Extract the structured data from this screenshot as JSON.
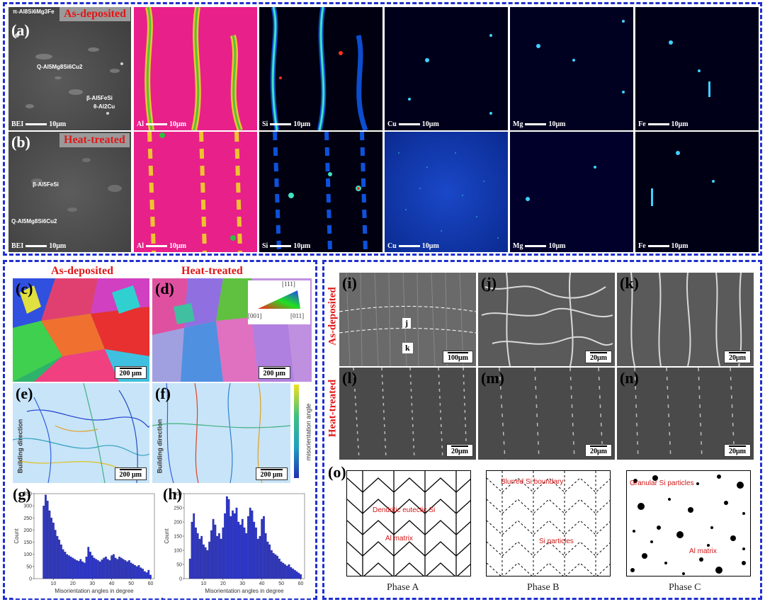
{
  "top_section": {
    "row_a": {
      "label": "(a)",
      "condition": "As-deposited",
      "annotations": [
        "π-Al8Si6Mg3Fe",
        "Q-Al5Mg8Si6Cu2",
        "β-Al5FeSi",
        "θ-Al2Cu"
      ],
      "maps": [
        {
          "element": "BEI",
          "scale": "10μm"
        },
        {
          "element": "Al",
          "scale": "10μm"
        },
        {
          "element": "Si",
          "scale": "10μm"
        },
        {
          "element": "Cu",
          "scale": "10μm"
        },
        {
          "element": "Mg",
          "scale": "10μm"
        },
        {
          "element": "Fe",
          "scale": "10μm"
        }
      ]
    },
    "row_b": {
      "label": "(b)",
      "condition": "Heat-treated",
      "annotations": [
        "β-Al5FeSi",
        "Q-Al5Mg8Si6Cu2"
      ],
      "maps": [
        {
          "element": "BEI",
          "scale": "10μm"
        },
        {
          "element": "Al",
          "scale": "10μm"
        },
        {
          "element": "Si",
          "scale": "10μm"
        },
        {
          "element": "Cu",
          "scale": "10μm"
        },
        {
          "element": "Mg",
          "scale": "10μm"
        },
        {
          "element": "Fe",
          "scale": "10μm"
        }
      ]
    }
  },
  "ebsd_section": {
    "title_left": "As-deposited",
    "title_right": "Heat-treated",
    "c": {
      "label": "(c)",
      "scale": "200 μm"
    },
    "d": {
      "label": "(d)",
      "scale": "200 μm"
    },
    "ipf_legend": {
      "top": "[111]",
      "left": "[001]",
      "right": "[011]"
    },
    "e": {
      "label": "(e)",
      "scale": "200 μm",
      "direction": "Building direction"
    },
    "f": {
      "label": "(f)",
      "scale": "200 μm",
      "direction": "Building direction"
    },
    "colorbar_label": "misorientation angle",
    "g": {
      "label": "(g)"
    },
    "h": {
      "label": "(h)"
    }
  },
  "chart_data": [
    {
      "type": "bar",
      "panel": "(g)",
      "xlabel": "Misorientation angles in degree",
      "ylabel": "Count",
      "xlim": [
        0,
        62
      ],
      "ylim": [
        0,
        350
      ],
      "xticks": [
        10,
        20,
        30,
        40,
        50,
        60
      ],
      "yticks": [
        0,
        50,
        100,
        150,
        200,
        250,
        300,
        350
      ],
      "x": [
        5,
        6,
        7,
        8,
        9,
        10,
        11,
        12,
        13,
        14,
        15,
        16,
        17,
        18,
        19,
        20,
        21,
        22,
        23,
        24,
        25,
        26,
        27,
        28,
        29,
        30,
        31,
        32,
        33,
        34,
        35,
        36,
        37,
        38,
        39,
        40,
        41,
        42,
        43,
        44,
        45,
        46,
        47,
        48,
        49,
        50,
        51,
        52,
        53,
        54,
        55,
        56,
        57,
        58,
        59,
        60
      ],
      "values": [
        300,
        345,
        320,
        280,
        250,
        230,
        200,
        175,
        160,
        140,
        120,
        110,
        100,
        95,
        90,
        85,
        80,
        75,
        72,
        80,
        70,
        65,
        90,
        130,
        110,
        95,
        85,
        80,
        75,
        70,
        78,
        85,
        90,
        80,
        75,
        95,
        100,
        85,
        80,
        90,
        85,
        80,
        75,
        70,
        75,
        65,
        60,
        55,
        50,
        55,
        45,
        40,
        30,
        25,
        35,
        15
      ]
    },
    {
      "type": "bar",
      "panel": "(h)",
      "xlabel": "Misorientation angles in degree",
      "ylabel": "Count",
      "xlim": [
        0,
        62
      ],
      "ylim": [
        0,
        300
      ],
      "xticks": [
        10,
        20,
        30,
        40,
        50,
        60
      ],
      "yticks": [
        0,
        50,
        100,
        150,
        200,
        250,
        300
      ],
      "x": [
        3,
        4,
        5,
        6,
        7,
        8,
        9,
        10,
        11,
        12,
        13,
        14,
        15,
        16,
        17,
        18,
        19,
        20,
        21,
        22,
        23,
        24,
        25,
        26,
        27,
        28,
        29,
        30,
        31,
        32,
        33,
        34,
        35,
        36,
        37,
        38,
        39,
        40,
        41,
        42,
        43,
        44,
        45,
        46,
        47,
        48,
        49,
        50,
        51,
        52,
        53,
        54,
        55,
        56,
        57,
        58,
        59,
        60
      ],
      "values": [
        70,
        200,
        230,
        180,
        160,
        140,
        150,
        120,
        110,
        100,
        130,
        170,
        210,
        190,
        150,
        160,
        140,
        180,
        230,
        290,
        280,
        220,
        240,
        230,
        250,
        200,
        190,
        210,
        180,
        160,
        220,
        250,
        240,
        200,
        180,
        140,
        150,
        210,
        220,
        160,
        130,
        120,
        100,
        90,
        85,
        80,
        70,
        60,
        55,
        50,
        45,
        50,
        40,
        35,
        30,
        25,
        20,
        15
      ]
    }
  ],
  "sem_section": {
    "side_top": "As-deposited",
    "side_bottom": "Heat-treated",
    "i": {
      "label": "(i)",
      "scale": "100μm",
      "markers": [
        "j",
        "k"
      ]
    },
    "j": {
      "label": "(j)",
      "scale": "20μm"
    },
    "k": {
      "label": "(k)",
      "scale": "20μm"
    },
    "l": {
      "label": "(l)",
      "scale": "20μm"
    },
    "m": {
      "label": "(m)",
      "scale": "20μm"
    },
    "n": {
      "label": "(n)",
      "scale": "20μm"
    }
  },
  "schematic": {
    "label": "(o)",
    "phase_a": {
      "caption": "Phase A",
      "ann1": "Dendritic eutectic Si",
      "ann2": "Al matrix"
    },
    "phase_b": {
      "caption": "Phase B",
      "ann1": "Blurred Si boundary",
      "ann2": "Si particles"
    },
    "phase_c": {
      "caption": "Phase C",
      "ann1": "Granular Si particles",
      "ann2": "Al matrix"
    }
  },
  "colors": {
    "frame": "#1f2fd0",
    "label_red": "#e01818",
    "al_map": "#e8208a",
    "map_bg": "#000010"
  }
}
